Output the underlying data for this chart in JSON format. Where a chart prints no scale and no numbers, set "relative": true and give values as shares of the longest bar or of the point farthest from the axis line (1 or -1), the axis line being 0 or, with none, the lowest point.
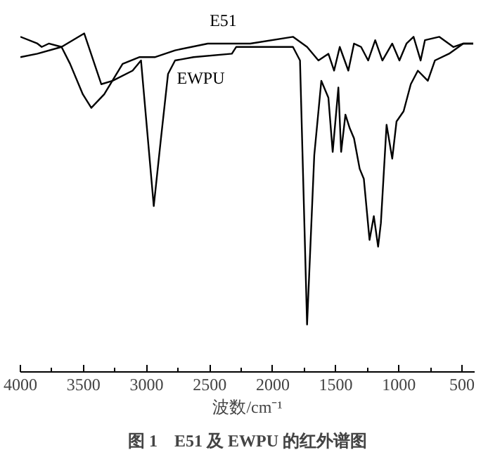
{
  "chart_data": {
    "type": "line",
    "relative": true,
    "title": "图 1　E51 及 EWPU 的红外谱图",
    "xlabel": "波数/cm⁻¹",
    "xlim": [
      4000,
      400
    ],
    "xticks": [
      4000,
      3500,
      3000,
      2500,
      2000,
      1500,
      1000,
      500
    ],
    "grid": false,
    "legend": false,
    "line_style": "solid",
    "marker": "none",
    "series": [
      {
        "name": "E51",
        "color": "#000000",
        "x": [
          4000,
          3865,
          3831,
          3775,
          3674,
          3606,
          3505,
          3438,
          3336,
          3190,
          3055,
          2931,
          2774,
          2515,
          2178,
          1840,
          1728,
          1638,
          1559,
          1514,
          1469,
          1401,
          1356,
          1300,
          1244,
          1188,
          1131,
          1053,
          996,
          940,
          884,
          828,
          794,
          681,
          569,
          490,
          411
        ],
        "values": [
          0.99,
          0.97,
          0.96,
          0.97,
          0.96,
          0.91,
          0.82,
          0.78,
          0.82,
          0.91,
          0.93,
          0.93,
          0.95,
          0.97,
          0.97,
          0.99,
          0.96,
          0.92,
          0.94,
          0.89,
          0.96,
          0.89,
          0.97,
          0.96,
          0.92,
          0.98,
          0.92,
          0.97,
          0.92,
          0.97,
          0.99,
          0.92,
          0.98,
          0.99,
          0.96,
          0.97,
          0.97
        ]
      },
      {
        "name": "EWPU",
        "color": "#000000",
        "x": [
          4000,
          3865,
          3674,
          3494,
          3359,
          3269,
          3111,
          3044,
          2943,
          2886,
          2830,
          2774,
          2628,
          2324,
          2290,
          1840,
          1784,
          1728,
          1671,
          1615,
          1559,
          1525,
          1480,
          1458,
          1424,
          1390,
          1356,
          1311,
          1278,
          1233,
          1199,
          1165,
          1143,
          1098,
          1053,
          1019,
          963,
          906,
          850,
          771,
          715,
          603,
          490,
          411
        ],
        "values": [
          0.93,
          0.94,
          0.96,
          1.0,
          0.85,
          0.86,
          0.89,
          0.92,
          0.49,
          0.69,
          0.88,
          0.92,
          0.93,
          0.94,
          0.96,
          0.96,
          0.92,
          0.14,
          0.64,
          0.86,
          0.81,
          0.65,
          0.84,
          0.65,
          0.76,
          0.72,
          0.69,
          0.6,
          0.57,
          0.39,
          0.46,
          0.37,
          0.44,
          0.73,
          0.63,
          0.74,
          0.77,
          0.85,
          0.89,
          0.86,
          0.92,
          0.94,
          0.97,
          0.97
        ]
      }
    ]
  }
}
